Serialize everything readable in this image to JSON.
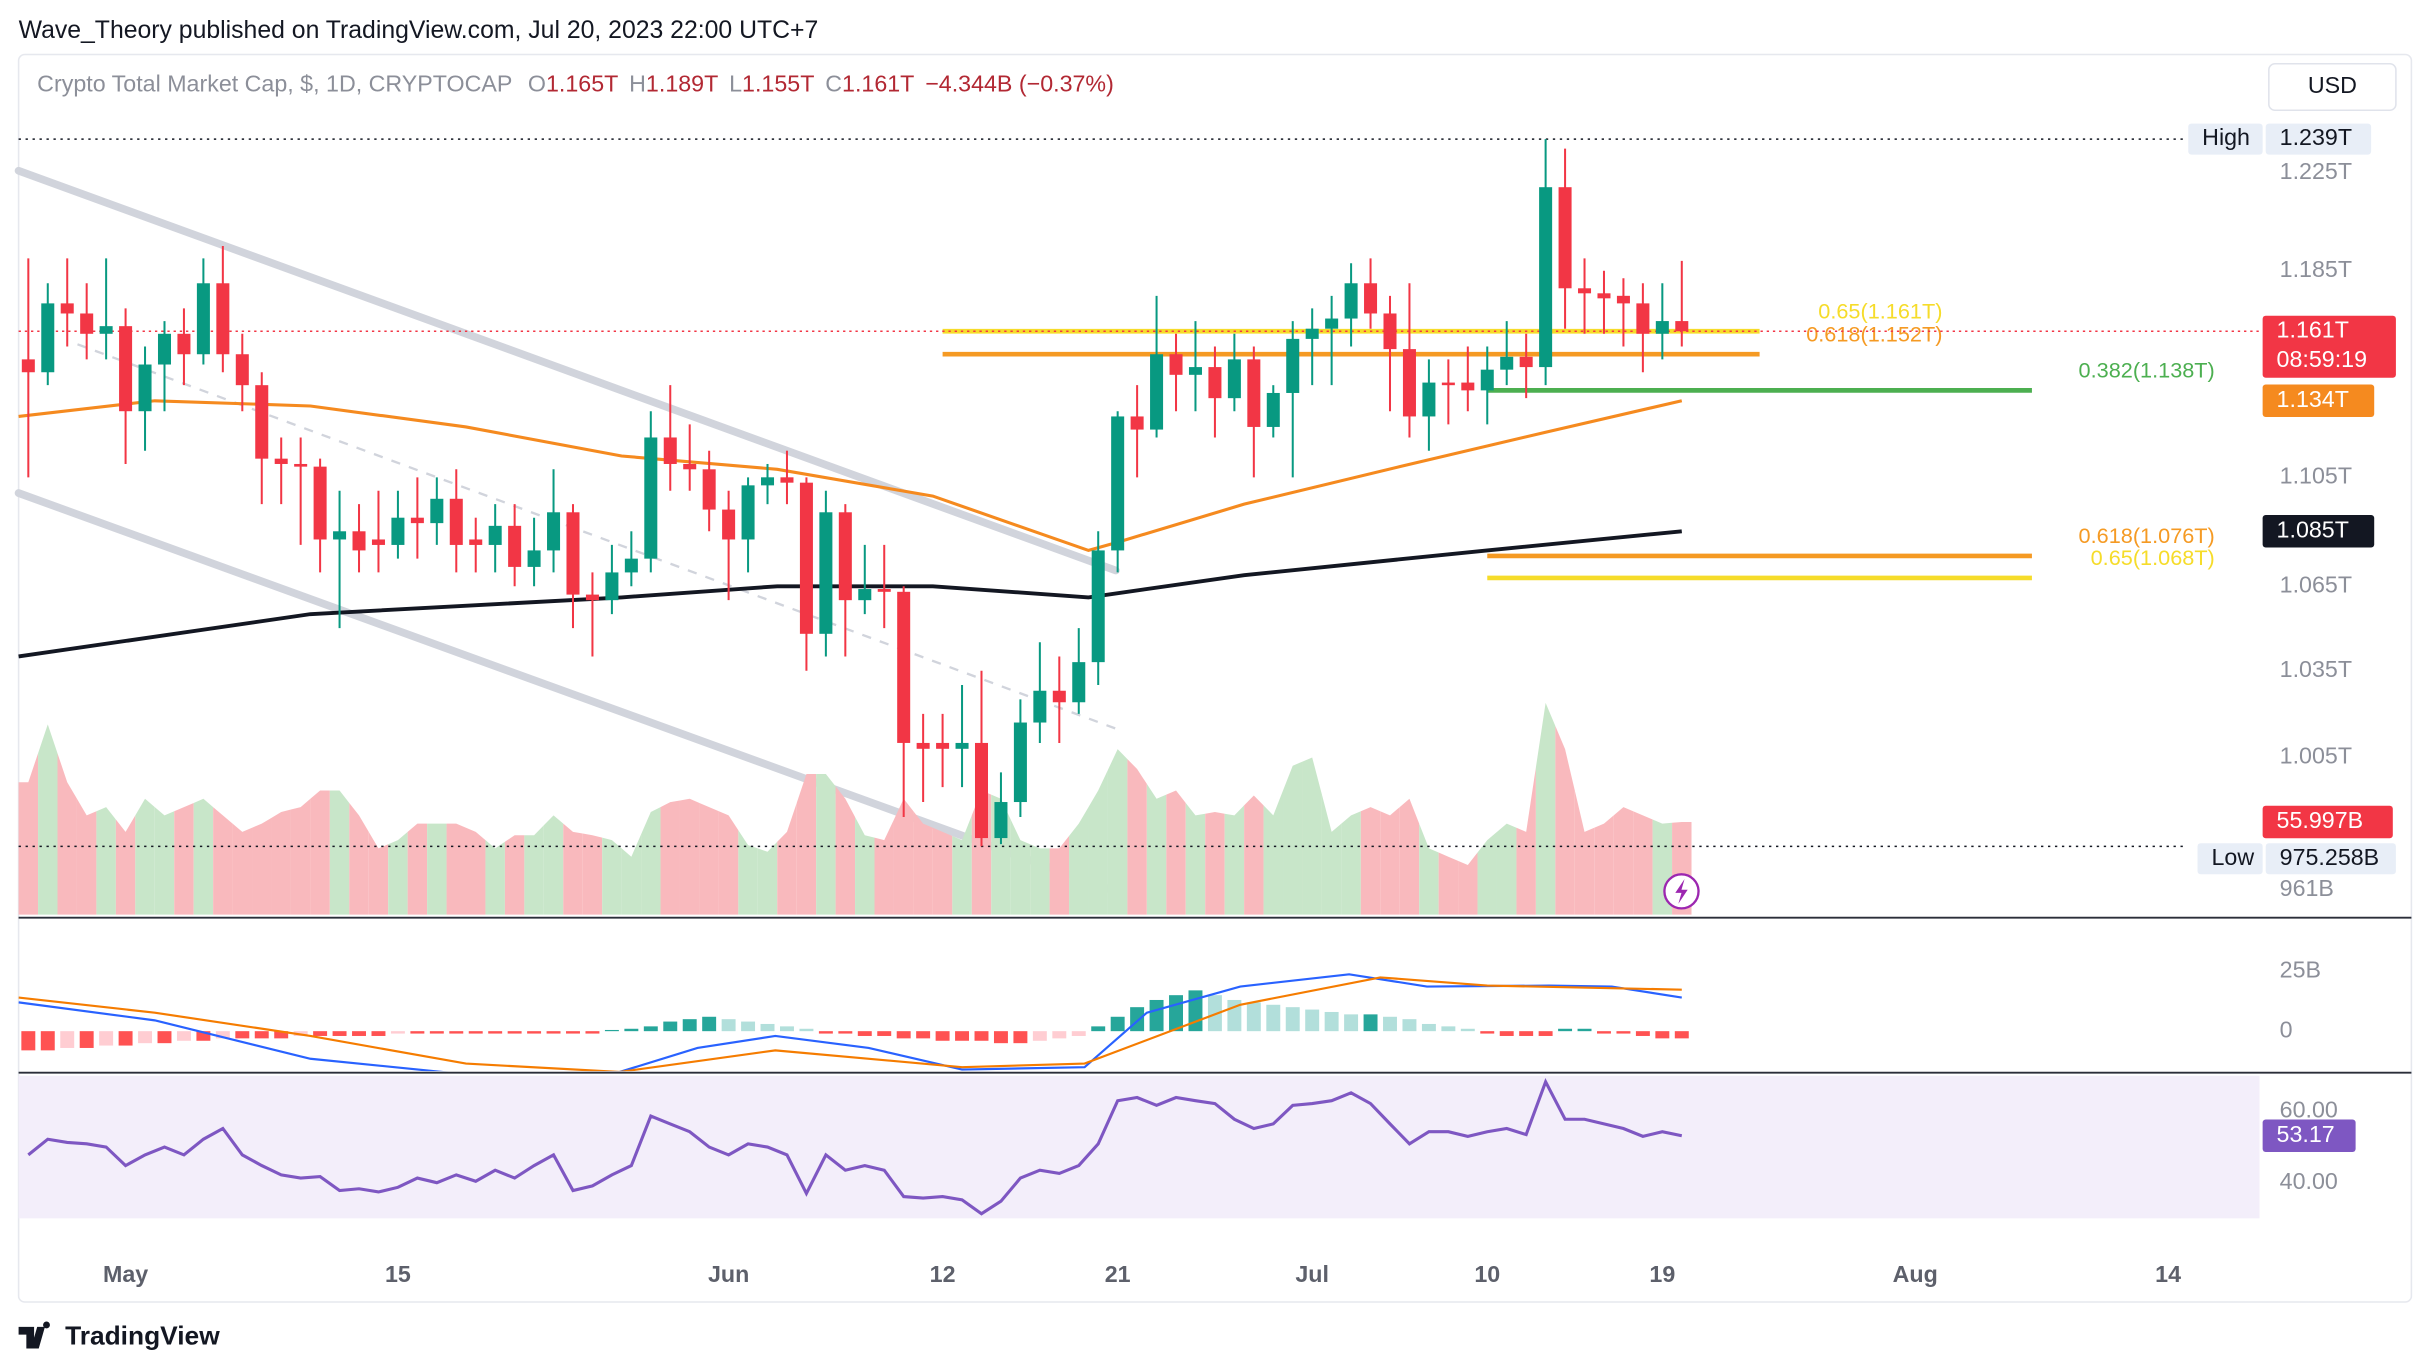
{
  "header": {
    "byline": "Wave_Theory published on TradingView.com, Jul 20, 2023 22:00 UTC+7",
    "footer": "TradingView"
  },
  "chart_data": {
    "type": "candlestick",
    "title": "Crypto Total Market Cap, $, 1D, CRYPTOCAP",
    "ohlc_legend": [
      {
        "key": "O",
        "text": "1.165T"
      },
      {
        "key": "H",
        "text": "1.189T"
      },
      {
        "key": "L",
        "text": "1.155T"
      },
      {
        "key": "C",
        "text": "1.161T"
      }
    ],
    "change": "−4.344B (−0.37%)",
    "currency": "USD",
    "log_scale": true,
    "grid": false,
    "xlim": [
      -0.5,
      114.7
    ],
    "xticks": [
      {
        "value": 5,
        "label": "May"
      },
      {
        "value": 19,
        "label": "15"
      },
      {
        "value": 36,
        "label": "Jun"
      },
      {
        "value": 47,
        "label": "12"
      },
      {
        "value": 56,
        "label": "21"
      },
      {
        "value": 66,
        "label": "Jul"
      },
      {
        "value": 75,
        "label": "10"
      },
      {
        "value": 84,
        "label": "19"
      },
      {
        "value": 97,
        "label": "Aug"
      },
      {
        "value": 110,
        "label": "14"
      }
    ],
    "ylim": [
      0.953,
      1.275
    ],
    "yticks": [
      {
        "value": 1.225,
        "label": "1.225T"
      },
      {
        "value": 1.185,
        "label": "1.185T"
      },
      {
        "value": 1.105,
        "label": "1.105T"
      },
      {
        "value": 1.065,
        "label": "1.065T"
      },
      {
        "value": 1.035,
        "label": "1.035T"
      },
      {
        "value": 1.005,
        "label": "1.005T"
      },
      {
        "value": 0.961,
        "label": "961B"
      }
    ],
    "candles": {
      "up_color": "#089981",
      "down_color": "#f23645",
      "open": [
        1.15,
        1.145,
        1.172,
        1.168,
        1.16,
        1.163,
        1.13,
        1.148,
        1.16,
        1.152,
        1.18,
        1.152,
        1.14,
        1.112,
        1.11,
        1.109,
        1.082,
        1.085,
        1.082,
        1.08,
        1.09,
        1.088,
        1.097,
        1.082,
        1.08,
        1.087,
        1.072,
        1.078,
        1.092,
        1.062,
        1.06,
        1.07,
        1.075,
        1.12,
        1.11,
        1.108,
        1.093,
        1.082,
        1.102,
        1.105,
        1.103,
        1.048,
        1.092,
        1.06,
        1.064,
        1.063,
        1.01,
        1.01,
        1.008,
        1.01,
        0.978,
        0.99,
        1.017,
        1.028,
        1.024,
        1.038,
        1.078,
        1.128,
        1.123,
        1.152,
        1.144,
        1.147,
        1.135,
        1.15,
        1.124,
        1.137,
        1.158,
        1.162,
        1.166,
        1.18,
        1.168,
        1.154,
        1.128,
        1.141,
        1.141,
        1.138,
        1.146,
        1.151,
        1.147,
        1.219,
        1.178,
        1.176,
        1.175,
        1.172,
        1.16,
        1.165
      ],
      "high": [
        1.19,
        1.18,
        1.19,
        1.18,
        1.19,
        1.17,
        1.155,
        1.165,
        1.17,
        1.19,
        1.195,
        1.16,
        1.145,
        1.12,
        1.12,
        1.112,
        1.1,
        1.095,
        1.1,
        1.1,
        1.105,
        1.105,
        1.108,
        1.09,
        1.095,
        1.095,
        1.09,
        1.108,
        1.095,
        1.07,
        1.08,
        1.085,
        1.13,
        1.14,
        1.125,
        1.115,
        1.1,
        1.105,
        1.11,
        1.115,
        1.105,
        1.1,
        1.095,
        1.08,
        1.08,
        1.065,
        1.02,
        1.02,
        1.03,
        1.035,
        1.0,
        1.025,
        1.045,
        1.04,
        1.05,
        1.085,
        1.13,
        1.14,
        1.175,
        1.16,
        1.165,
        1.155,
        1.16,
        1.155,
        1.14,
        1.165,
        1.17,
        1.175,
        1.188,
        1.19,
        1.175,
        1.18,
        1.15,
        1.15,
        1.155,
        1.155,
        1.165,
        1.16,
        1.239,
        1.235,
        1.19,
        1.185,
        1.182,
        1.18,
        1.18,
        1.189
      ],
      "low": [
        1.105,
        1.14,
        1.155,
        1.15,
        1.15,
        1.11,
        1.115,
        1.13,
        1.14,
        1.148,
        1.145,
        1.13,
        1.095,
        1.095,
        1.08,
        1.07,
        1.05,
        1.07,
        1.07,
        1.075,
        1.075,
        1.08,
        1.07,
        1.07,
        1.07,
        1.065,
        1.065,
        1.07,
        1.05,
        1.04,
        1.055,
        1.065,
        1.07,
        1.1,
        1.1,
        1.085,
        1.06,
        1.07,
        1.095,
        1.095,
        1.035,
        1.04,
        1.04,
        1.055,
        1.05,
        0.985,
        0.99,
        0.995,
        0.995,
        0.975258,
        0.976,
        0.985,
        1.01,
        1.01,
        1.02,
        1.03,
        1.07,
        1.105,
        1.12,
        1.13,
        1.13,
        1.12,
        1.13,
        1.105,
        1.12,
        1.105,
        1.14,
        1.14,
        1.155,
        1.162,
        1.13,
        1.12,
        1.115,
        1.125,
        1.13,
        1.125,
        1.14,
        1.135,
        1.14,
        1.162,
        1.16,
        1.16,
        1.155,
        1.145,
        1.15,
        1.155
      ],
      "close": [
        1.145,
        1.172,
        1.168,
        1.16,
        1.163,
        1.13,
        1.148,
        1.16,
        1.152,
        1.18,
        1.152,
        1.14,
        1.112,
        1.11,
        1.109,
        1.082,
        1.085,
        1.078,
        1.08,
        1.09,
        1.088,
        1.097,
        1.08,
        1.08,
        1.087,
        1.072,
        1.078,
        1.092,
        1.062,
        1.06,
        1.07,
        1.075,
        1.12,
        1.11,
        1.108,
        1.093,
        1.082,
        1.102,
        1.105,
        1.103,
        1.048,
        1.092,
        1.06,
        1.064,
        1.063,
        1.01,
        1.008,
        1.008,
        1.01,
        0.978,
        0.99,
        1.017,
        1.028,
        1.024,
        1.038,
        1.078,
        1.128,
        1.123,
        1.152,
        1.144,
        1.147,
        1.135,
        1.15,
        1.124,
        1.137,
        1.158,
        1.162,
        1.166,
        1.18,
        1.168,
        1.154,
        1.128,
        1.141,
        1.14,
        1.138,
        1.146,
        1.151,
        1.147,
        1.219,
        1.178,
        1.176,
        1.174,
        1.172,
        1.16,
        1.165,
        1.161
      ]
    },
    "last_price": {
      "label": "1.161T",
      "countdown": "08:59:19"
    },
    "high": {
      "label": "High",
      "value": 1.239,
      "value_label": "1.239T"
    },
    "low": {
      "label": "Low",
      "value": 0.975258,
      "value_label": "975.258B"
    },
    "series": [
      {
        "color": "#f58a1f",
        "x": [
          -0.5,
          6.5,
          14.5,
          22.5,
          30.5,
          38.5,
          46.5,
          54.5,
          56,
          62.5,
          70.5,
          78,
          85
        ],
        "values": [
          1.128,
          1.134,
          1.132,
          1.124,
          1.113,
          1.108,
          1.098,
          1.078,
          1.081,
          1.095,
          1.109,
          1.122,
          1.134
        ],
        "last_label": "1.134T"
      },
      {
        "color": "#131722",
        "x": [
          -0.5,
          14.5,
          30.5,
          38.5,
          46.5,
          54.5,
          62.5,
          75,
          85
        ],
        "values": [
          1.04,
          1.055,
          1.061,
          1.065,
          1.065,
          1.061,
          1.069,
          1.078,
          1.085
        ],
        "last_label": "1.085T"
      }
    ],
    "levels": [
      {
        "label": "0.65(1.161T)",
        "value": 1.161,
        "x": [
          47,
          89
        ],
        "color": "#f6dc2a"
      },
      {
        "label": "0.618(1.152T)",
        "value": 1.152,
        "x": [
          47,
          89
        ],
        "color": "#f59a23"
      },
      {
        "label": "0.382(1.138T)",
        "value": 1.138,
        "x": [
          75,
          103
        ],
        "color": "#4caf50"
      },
      {
        "label": "0.618(1.076T)",
        "value": 1.076,
        "x": [
          75,
          103
        ],
        "color": "#f59a23"
      },
      {
        "label": "0.65(1.068T)",
        "value": 1.068,
        "x": [
          75,
          103
        ],
        "color": "#f6dc2a"
      }
    ],
    "volume": {
      "up_color": "#c8e6c9",
      "down_color": "#f9b9bd",
      "ylim": [
        0,
        520
      ],
      "values": [
        80,
        115,
        80,
        60,
        65,
        50,
        70,
        60,
        65,
        70,
        60,
        50,
        55,
        62,
        65,
        75,
        75,
        60,
        40,
        45,
        55,
        55,
        55,
        50,
        40,
        48,
        48,
        60,
        50,
        48,
        45,
        35,
        62,
        68,
        70,
        65,
        60,
        42,
        38,
        50,
        85,
        85,
        70,
        48,
        45,
        70,
        55,
        50,
        45,
        75,
        70,
        45,
        40,
        40,
        55,
        75,
        100,
        88,
        70,
        75,
        60,
        62,
        60,
        72,
        60,
        90,
        95,
        50,
        60,
        65,
        60,
        70,
        40,
        35,
        30,
        45,
        55,
        50,
        128,
        100,
        50,
        55,
        65,
        60,
        55,
        55.997
      ],
      "last_label": "55.997B"
    },
    "macd": {
      "ylim": [
        -16,
        46
      ],
      "yticks": [
        {
          "value": 25,
          "label": "25B"
        },
        0
      ],
      "hist_colors": [
        "#26a69a",
        "#b2dfdb",
        "#ff5252",
        "#ffcdd2"
      ],
      "histogram": [
        -8,
        -8,
        -7,
        -7,
        -6,
        -6,
        -5,
        -5,
        -4,
        -4,
        -3,
        -3,
        -3,
        -3,
        -2,
        -2,
        -2,
        -2,
        -2,
        -1,
        -1,
        -1,
        -1,
        -1,
        -1,
        -1,
        -1,
        -1,
        -1,
        -1,
        0.5,
        1,
        2,
        4,
        5,
        6,
        5,
        4,
        3,
        2,
        1,
        -1,
        -1,
        -2,
        -2,
        -3,
        -3,
        -4,
        -4,
        -4,
        -5,
        -5,
        -4,
        -3,
        -2,
        2,
        6,
        10,
        13,
        15,
        17,
        15,
        13,
        12,
        11,
        10,
        9,
        8,
        7,
        7,
        6,
        5,
        3,
        2,
        1,
        -1,
        -2,
        -2,
        -2,
        1,
        1,
        -1,
        -1,
        -2,
        -3,
        -3
      ],
      "macd": {
        "color": "#2962ff",
        "x": [
          -0.5,
          6.5,
          14.5,
          22.5,
          30.4,
          34.4,
          38.4,
          43.2,
          48,
          54.3,
          57.5,
          62.3,
          67.9,
          71.9,
          78.2,
          81.4,
          85
        ],
        "values": [
          12,
          4.5,
          -11.5,
          -18,
          -17,
          -7,
          -2,
          -7,
          -16,
          -15,
          7.7,
          18.6,
          23.7,
          18.6,
          19,
          18.6,
          14
        ]
      },
      "signal": {
        "color": "#f57c00",
        "x": [
          -0.5,
          6.5,
          14.5,
          22.5,
          30.4,
          38.4,
          48,
          54.3,
          62.3,
          69.5,
          75,
          85
        ],
        "values": [
          14,
          7.7,
          -2,
          -13.5,
          -17,
          -8,
          -15,
          -13.5,
          11,
          22.4,
          19,
          17.3
        ]
      }
    },
    "rsi": {
      "ylim": [
        30,
        70
      ],
      "yticks": [
        {
          "value": 60,
          "label": "60.00"
        },
        {
          "value": 40,
          "label": "40.00"
        }
      ],
      "color": "#7e57c2",
      "band_color": "#f3eefa",
      "values": [
        47.8,
        52.2,
        51.3,
        50.9,
        50.0,
        44.8,
        47.8,
        50.0,
        47.8,
        52.2,
        55.2,
        47.8,
        44.8,
        42.2,
        41.3,
        41.7,
        37.8,
        38.3,
        37.4,
        38.7,
        41.3,
        40.0,
        42.2,
        40.4,
        43.5,
        41.3,
        44.8,
        47.8,
        37.8,
        39.1,
        42.2,
        44.8,
        58.7,
        56.5,
        54.3,
        50.0,
        47.8,
        50.9,
        50.0,
        47.8,
        37.0,
        47.8,
        43.5,
        44.8,
        43.5,
        36.1,
        35.7,
        36.1,
        35.2,
        31.3,
        34.8,
        41.3,
        43.5,
        42.6,
        44.8,
        50.9,
        63.0,
        63.9,
        61.7,
        63.9,
        63.0,
        62.2,
        57.8,
        55.2,
        56.5,
        61.7,
        62.2,
        63.0,
        65.2,
        62.2,
        56.5,
        50.9,
        54.3,
        54.3,
        53.0,
        54.3,
        55.2,
        53.5,
        68.3,
        57.8,
        57.8,
        56.5,
        55.2,
        53.0,
        54.3,
        53.17
      ],
      "last_label": "53.17"
    }
  }
}
